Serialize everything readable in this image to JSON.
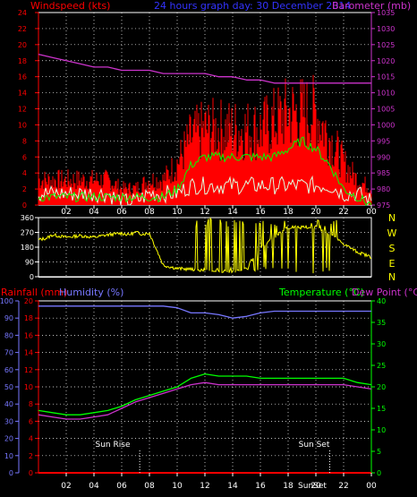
{
  "header": {
    "windspeed_label": "Windspeed (kts)",
    "title": "24 hours graph day: 30 December 2014",
    "barometer_label": "Barometer (mb)"
  },
  "compass": [
    "N",
    "W",
    "S",
    "E",
    "N"
  ],
  "panel3": {
    "rainfall_label": "Rainfall (mm)",
    "humidity_label": "Humidity (%)",
    "temperature_label": "Temperature (°C)",
    "dewpoint_label": "Dew Point (°C)",
    "sunrise_label": "Sun Rise",
    "sunset_label": "Sun Set",
    "sunset_time_label": "SunSet"
  },
  "x_ticks": [
    "02",
    "04",
    "06",
    "08",
    "10",
    "12",
    "14",
    "16",
    "18",
    "20",
    "22",
    "00"
  ],
  "colors": {
    "gust": "#ff0000",
    "windspeed": "#00ff00",
    "wind_avg": "#e0ffe0",
    "barometer": "#cc33cc",
    "direction": "#ffff00",
    "humidity": "#7777ff",
    "temperature": "#00ff00",
    "dewpoint": "#cc33cc",
    "rainfall": "#ff0000"
  },
  "chart_data": [
    {
      "type": "line",
      "name": "wind_and_barometer",
      "x_unit": "hours",
      "x": [
        0,
        1,
        2,
        3,
        4,
        5,
        6,
        7,
        8,
        9,
        10,
        11,
        12,
        13,
        14,
        15,
        16,
        17,
        18,
        19,
        20,
        21,
        22,
        23,
        24
      ],
      "left_axis": {
        "label": "Windspeed (kts)",
        "ylim": [
          0,
          24
        ],
        "ticks": [
          0,
          2,
          4,
          6,
          8,
          10,
          12,
          14,
          16,
          18,
          20,
          22,
          24
        ]
      },
      "right_axis": {
        "label": "Barometer (mb)",
        "ylim": [
          975,
          1035
        ],
        "ticks": [
          975,
          980,
          985,
          990,
          995,
          1000,
          1005,
          1010,
          1015,
          1020,
          1025,
          1030,
          1035
        ]
      },
      "series": [
        {
          "axis": "left",
          "values": [
            3,
            3,
            3,
            3,
            3,
            3,
            2,
            2,
            3,
            3,
            5,
            8,
            9,
            9,
            9,
            9,
            9,
            10,
            11,
            11,
            11,
            8,
            5,
            3,
            2
          ]
        },
        {
          "axis": "left",
          "values": [
            1,
            1,
            1,
            1,
            1,
            1,
            1,
            1,
            1,
            1,
            2,
            5,
            6,
            6,
            6,
            6,
            6,
            6,
            7,
            8,
            7,
            5,
            2,
            1,
            0
          ]
        },
        {
          "axis": "left",
          "values": [
            1,
            1,
            1,
            1,
            1,
            1,
            0,
            0,
            1,
            1,
            1,
            2,
            2,
            2,
            2,
            2,
            2,
            2,
            2,
            2,
            2,
            2,
            1,
            1,
            0
          ]
        },
        {
          "axis": "right",
          "values": [
            1022,
            1021,
            1020,
            1019,
            1018,
            1018,
            1017,
            1017,
            1017,
            1016,
            1016,
            1016,
            1016,
            1015,
            1015,
            1014,
            1014,
            1013,
            1013,
            1013,
            1013,
            1013,
            1013,
            1013,
            1013
          ]
        }
      ]
    },
    {
      "type": "line",
      "name": "wind_direction",
      "x_unit": "hours",
      "y_unit": "degrees",
      "ylim": [
        0,
        360
      ],
      "yticks": [
        0,
        90,
        180,
        270,
        360
      ],
      "x": [
        0,
        0.6,
        1,
        2,
        3,
        4,
        5,
        6,
        6.5,
        7,
        7.5,
        8,
        9,
        10,
        11,
        12,
        13,
        14,
        15,
        16,
        17,
        18,
        19,
        20,
        21,
        22,
        23,
        24
      ],
      "values": [
        225,
        235,
        255,
        240,
        250,
        240,
        255,
        265,
        255,
        270,
        260,
        265,
        70,
        50,
        45,
        40,
        35,
        30,
        50,
        180,
        240,
        300,
        300,
        300,
        260,
        200,
        150,
        120
      ]
    },
    {
      "type": "line",
      "name": "rain_humidity_temperature",
      "x_unit": "hours",
      "left_axis": {
        "label": "Humidity (%)",
        "ylim": [
          0,
          100
        ],
        "ticks": [
          0,
          10,
          20,
          30,
          40,
          50,
          60,
          70,
          80,
          90,
          100
        ]
      },
      "left_axis_2": {
        "label": "Rainfall (mm)",
        "ylim": [
          0,
          20
        ],
        "ticks": [
          0,
          2,
          4,
          6,
          8,
          10,
          12,
          14,
          16,
          18,
          20
        ]
      },
      "right_axis": {
        "label": "Temperature (°C)",
        "ylim": [
          0,
          40
        ],
        "ticks": [
          0,
          5,
          10,
          15,
          20,
          25,
          30,
          35,
          40
        ]
      },
      "series": [
        {
          "axis": "left",
          "values": [
            97,
            97,
            97,
            97,
            97,
            97,
            97,
            97,
            97,
            97,
            96,
            93,
            93,
            92,
            90,
            91,
            93,
            94,
            94,
            94,
            94,
            94,
            94,
            94,
            94
          ]
        },
        {
          "axis": "right",
          "values": [
            14.5,
            14,
            13.5,
            13.5,
            14,
            14.5,
            15.5,
            17,
            18,
            19,
            20,
            22,
            23,
            22.5,
            22.5,
            22.5,
            22,
            22,
            22,
            22,
            22,
            22,
            22,
            21,
            20.5
          ]
        },
        {
          "axis": "right",
          "values": [
            13.5,
            13,
            12.5,
            12.5,
            13,
            13.5,
            15,
            16.5,
            17.5,
            18.5,
            19.5,
            20.5,
            21,
            20.5,
            20.5,
            20.5,
            20.5,
            20.5,
            20.5,
            20.5,
            20.5,
            20.5,
            20.5,
            20,
            19.5
          ]
        },
        {
          "axis": "left_2",
          "values": [
            0,
            0,
            0,
            0,
            0,
            0,
            0,
            0,
            0,
            0,
            0,
            0,
            0,
            0,
            0,
            0,
            0,
            0,
            0,
            0,
            0,
            0,
            0,
            0,
            0
          ]
        }
      ],
      "annotations": [
        {
          "label": "Sun Rise",
          "x": 7.3
        },
        {
          "label": "Sun Set",
          "x": 21.0
        }
      ]
    }
  ]
}
